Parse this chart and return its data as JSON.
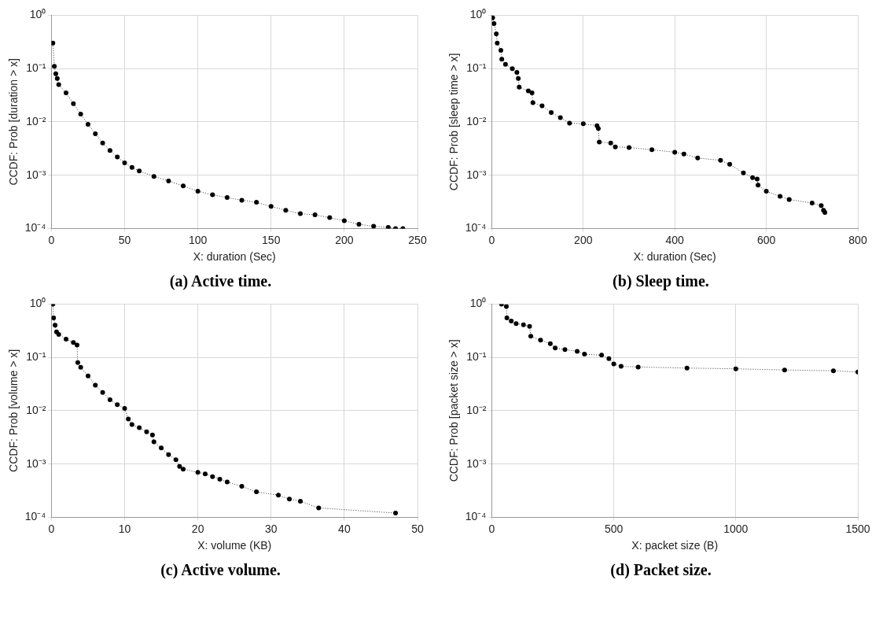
{
  "chart_data": [
    {
      "type": "line",
      "xlabel": "X: duration (Sec)",
      "ylabel": "CCDF: Prob [duration > x]",
      "annotations": [
        "(a)  Active time."
      ],
      "log": "y",
      "grid": true,
      "marker": "circle",
      "line_style": "dotted",
      "xlim": [
        0,
        250
      ],
      "xticks": [
        0,
        50,
        100,
        150,
        200,
        250
      ],
      "ylim": [
        0.0001,
        1
      ],
      "yticks": [
        {
          "value": 0.0001,
          "label": "10⁻⁴"
        },
        {
          "value": 0.001,
          "label": "10⁻³"
        },
        {
          "value": 0.01,
          "label": "10⁻²"
        },
        {
          "value": 0.1,
          "label": "10⁻¹"
        },
        {
          "value": 1,
          "label": "10⁰"
        }
      ],
      "series": [
        {
          "color": "#000000",
          "x": [
            1,
            2,
            3,
            4,
            5,
            10,
            15,
            20,
            25,
            30,
            35,
            40,
            45,
            50,
            55,
            60,
            70,
            80,
            90,
            100,
            110,
            120,
            130,
            140,
            150,
            160,
            170,
            180,
            190,
            200,
            210,
            220,
            230,
            235,
            240
          ],
          "values": [
            0.3,
            0.11,
            0.08,
            0.065,
            0.05,
            0.035,
            0.022,
            0.014,
            0.009,
            0.006,
            0.004,
            0.0029,
            0.0022,
            0.0017,
            0.0014,
            0.0012,
            0.00095,
            0.00078,
            0.00063,
            0.0005,
            0.00043,
            0.00038,
            0.00034,
            0.00031,
            0.00026,
            0.00022,
            0.00019,
            0.00018,
            0.00016,
            0.00014,
            0.00012,
            0.00011,
            0.000105,
            0.0001,
            0.0001
          ]
        }
      ]
    },
    {
      "type": "line",
      "xlabel": "X: duration (Sec)",
      "ylabel": "CCDF: Prob [sleep time > x]",
      "annotations": [
        "(b)  Sleep time."
      ],
      "log": "y",
      "grid": true,
      "marker": "circle",
      "line_style": "dotted",
      "xlim": [
        0,
        800
      ],
      "xticks": [
        0,
        200,
        400,
        600,
        800
      ],
      "ylim": [
        0.0001,
        1
      ],
      "yticks": [
        {
          "value": 0.0001,
          "label": "10⁻⁴"
        },
        {
          "value": 0.001,
          "label": "10⁻³"
        },
        {
          "value": 0.01,
          "label": "10⁻²"
        },
        {
          "value": 0.1,
          "label": "10⁻¹"
        },
        {
          "value": 1,
          "label": "10⁰"
        }
      ],
      "series": [
        {
          "color": "#000000",
          "x": [
            2,
            5,
            10,
            12,
            20,
            22,
            30,
            45,
            55,
            58,
            60,
            80,
            88,
            90,
            110,
            130,
            150,
            170,
            200,
            230,
            233,
            235,
            260,
            270,
            300,
            350,
            400,
            420,
            450,
            500,
            520,
            550,
            570,
            580,
            582,
            600,
            630,
            650,
            700,
            720,
            725,
            728
          ],
          "values": [
            0.9,
            0.7,
            0.45,
            0.3,
            0.22,
            0.15,
            0.12,
            0.1,
            0.085,
            0.065,
            0.045,
            0.038,
            0.035,
            0.023,
            0.02,
            0.015,
            0.012,
            0.0095,
            0.0092,
            0.0085,
            0.0075,
            0.0042,
            0.004,
            0.0034,
            0.0033,
            0.003,
            0.0027,
            0.0025,
            0.0021,
            0.0019,
            0.0016,
            0.0011,
            0.0009,
            0.00085,
            0.00065,
            0.0005,
            0.0004,
            0.00035,
            0.0003,
            0.00027,
            0.00022,
            0.0002
          ]
        }
      ]
    },
    {
      "type": "line",
      "xlabel": "X: volume (KB)",
      "ylabel": "CCDF: Prob [volume > x]",
      "annotations": [
        "(c)  Active volume."
      ],
      "log": "y",
      "grid": true,
      "marker": "circle",
      "line_style": "dotted",
      "xlim": [
        0,
        50
      ],
      "xticks": [
        0,
        10,
        20,
        30,
        40,
        50
      ],
      "ylim": [
        0.0001,
        1
      ],
      "yticks": [
        {
          "value": 0.0001,
          "label": "10⁻⁴"
        },
        {
          "value": 0.001,
          "label": "10⁻³"
        },
        {
          "value": 0.01,
          "label": "10⁻²"
        },
        {
          "value": 0.1,
          "label": "10⁻¹"
        },
        {
          "value": 1,
          "label": "10⁰"
        }
      ],
      "series": [
        {
          "color": "#000000",
          "x": [
            0.2,
            0.3,
            0.5,
            0.7,
            1,
            2,
            3,
            3.5,
            3.6,
            4,
            5,
            6,
            7,
            8,
            9,
            10,
            10.5,
            11,
            12,
            13,
            13.8,
            14,
            15,
            16,
            17,
            17.5,
            18,
            20,
            21,
            22,
            23,
            24,
            26,
            28,
            31,
            32.5,
            34,
            36.5,
            47
          ],
          "values": [
            1.0,
            0.55,
            0.4,
            0.3,
            0.27,
            0.22,
            0.19,
            0.17,
            0.08,
            0.065,
            0.045,
            0.03,
            0.022,
            0.016,
            0.013,
            0.011,
            0.007,
            0.0055,
            0.0048,
            0.004,
            0.0035,
            0.0026,
            0.002,
            0.0015,
            0.0012,
            0.0009,
            0.0008,
            0.0007,
            0.00065,
            0.00058,
            0.00052,
            0.00046,
            0.00038,
            0.0003,
            0.00026,
            0.00022,
            0.0002,
            0.00015,
            0.00012
          ]
        }
      ]
    },
    {
      "type": "line",
      "xlabel": "X: packet size (B)",
      "ylabel": "CCDF: Prob [packet size > x]",
      "annotations": [
        "(d)  Packet size."
      ],
      "log": "y",
      "grid": true,
      "marker": "circle",
      "line_style": "dotted",
      "xlim": [
        0,
        1500
      ],
      "xticks": [
        0,
        500,
        1000,
        1500
      ],
      "ylim": [
        0.0001,
        1
      ],
      "yticks": [
        {
          "value": 0.0001,
          "label": "10⁻⁴"
        },
        {
          "value": 0.001,
          "label": "10⁻³"
        },
        {
          "value": 0.01,
          "label": "10⁻²"
        },
        {
          "value": 0.1,
          "label": "10⁻¹"
        },
        {
          "value": 1,
          "label": "10⁰"
        }
      ],
      "series": [
        {
          "color": "#000000",
          "x": [
            40,
            60,
            62,
            80,
            100,
            130,
            155,
            160,
            200,
            240,
            260,
            300,
            350,
            380,
            450,
            480,
            500,
            530,
            600,
            800,
            1000,
            1200,
            1400,
            1500
          ],
          "values": [
            1.0,
            0.9,
            0.55,
            0.48,
            0.43,
            0.41,
            0.38,
            0.25,
            0.21,
            0.18,
            0.15,
            0.14,
            0.13,
            0.115,
            0.11,
            0.095,
            0.075,
            0.068,
            0.066,
            0.063,
            0.061,
            0.058,
            0.056,
            0.053
          ]
        }
      ]
    }
  ]
}
